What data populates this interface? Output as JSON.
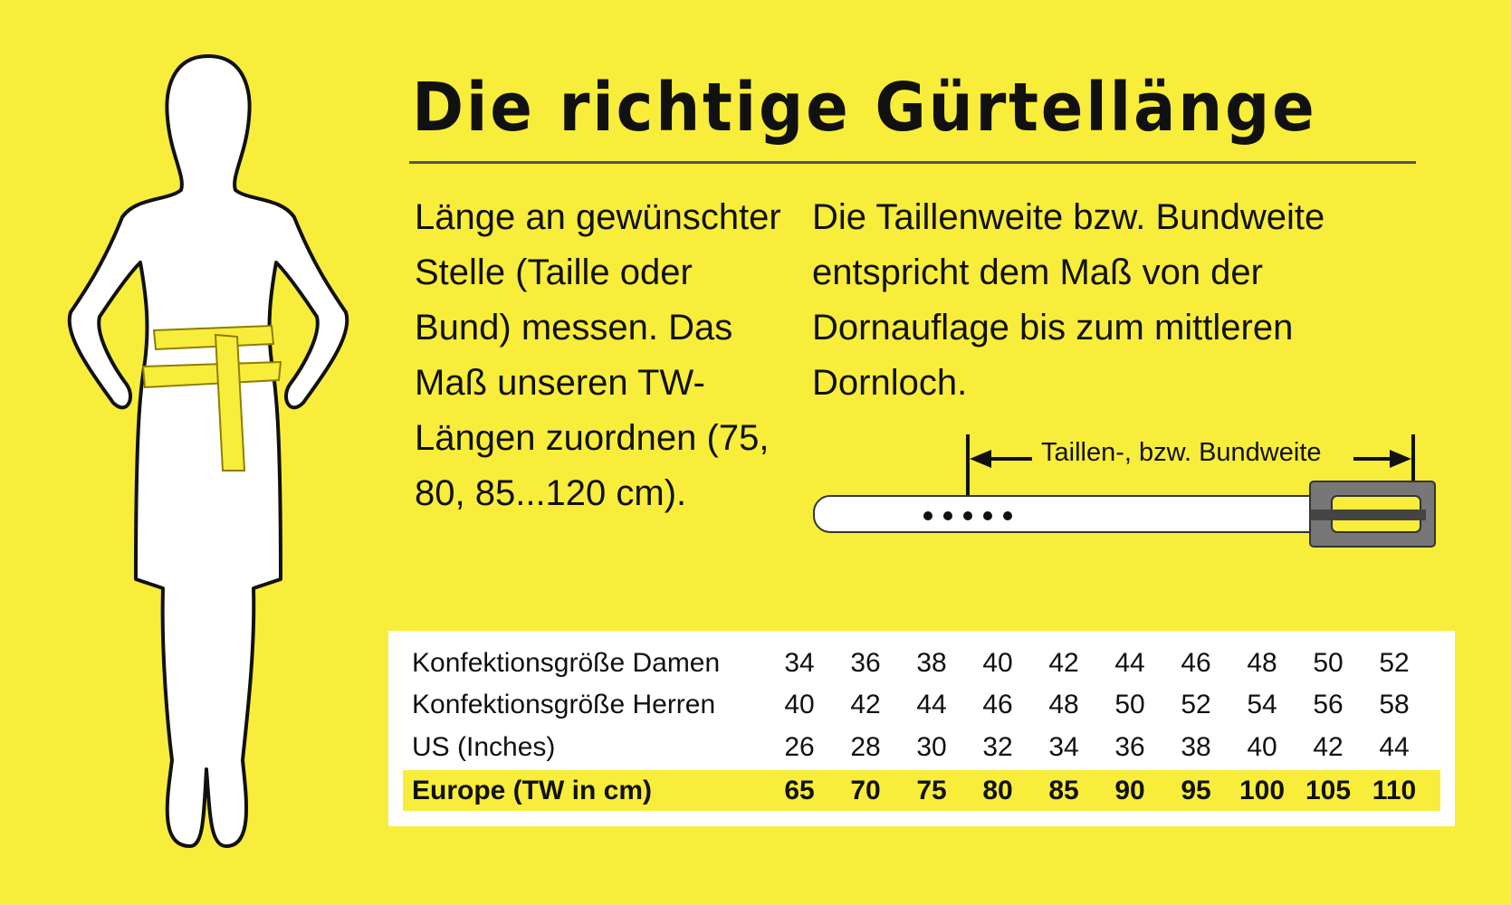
{
  "title": "Die richtige Gürtellänge",
  "left_text": "Länge an gewünschter Stelle (Taille oder Bund) messen. Das Maß unseren TW-Längen zuordnen (75, 80, 85...120 cm).",
  "right_text": "Die Taillenweite bzw. Bundweite entspricht dem Maß von der Dornauflage bis zum mittleren Dornloch.",
  "belt_label": "Taillen-, bzw. Bundweite",
  "colors": {
    "background": "#f8ed3b",
    "highlight": "#f8ed3b",
    "buckle": "#777777"
  },
  "size_table": {
    "rows": [
      {
        "label": "Konfektionsgröße Damen",
        "values": [
          "34",
          "36",
          "38",
          "40",
          "42",
          "44",
          "46",
          "48",
          "50",
          "52"
        ]
      },
      {
        "label": "Konfektionsgröße Herren",
        "values": [
          "40",
          "42",
          "44",
          "46",
          "48",
          "50",
          "52",
          "54",
          "56",
          "58"
        ]
      },
      {
        "label": "US (Inches)",
        "values": [
          "26",
          "28",
          "30",
          "32",
          "34",
          "36",
          "38",
          "40",
          "42",
          "44"
        ]
      },
      {
        "label": "Europe (TW in cm)",
        "values": [
          "65",
          "70",
          "75",
          "80",
          "85",
          "90",
          "95",
          "100",
          "105",
          "110"
        ],
        "highlighted": true
      }
    ]
  }
}
